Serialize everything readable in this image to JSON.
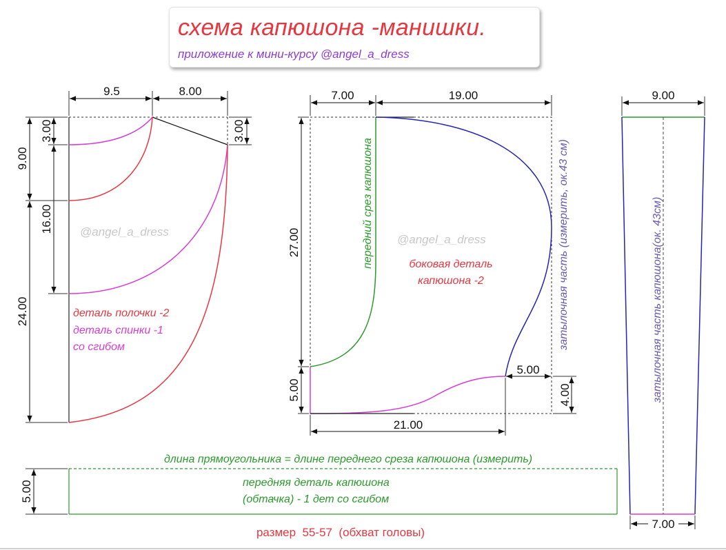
{
  "title": {
    "main": "схема капюшона -манишки.",
    "subtitle": "приложение к мини-курсу @angel_a_dress"
  },
  "watermark": "@angel_a_dress",
  "left_piece": {
    "dims": {
      "top_a": "9.5",
      "top_b": "8.00",
      "left_3": "3.00",
      "left_9": "9.00",
      "left_16": "16.00",
      "left_24": "24.00",
      "right_3": "3.00"
    },
    "label_front": "деталь полочки -2",
    "label_back": "деталь спинки -1",
    "label_fold": "со сгибом"
  },
  "hood_side": {
    "dims": {
      "top_a": "7.00",
      "top_b": "19.00",
      "left_27": "27.00",
      "left_5": "5.00",
      "right_5": "5.00",
      "right_4": "4.00",
      "bottom_21": "21.00"
    },
    "front_edge_label": "передний срез капюшона",
    "back_edge_label": "затылочная часть (измерить, ок.43 см)",
    "label_line1": "боковая деталь",
    "label_line2": "капюшона -2"
  },
  "back_strip": {
    "dims": {
      "top": "9.00",
      "bottom": "7.00"
    },
    "label": "затылочная часть капюшона(ок. 43см)"
  },
  "front_strip": {
    "note": "длина прямоугольника = длине переднего среза капюшона (измерить)",
    "height_dim": "5.00",
    "label_line1": "передняя деталь капюшона",
    "label_line2": "(обтачка) - 1 дет со сгибом"
  },
  "size_note": "размер  55-57  (обхват головы)",
  "colors": {
    "red": "#e8363f",
    "magenta": "#d63cd6",
    "green": "#2a9a2a",
    "blue": "#2323b8",
    "purple": "#8a3dd4"
  }
}
